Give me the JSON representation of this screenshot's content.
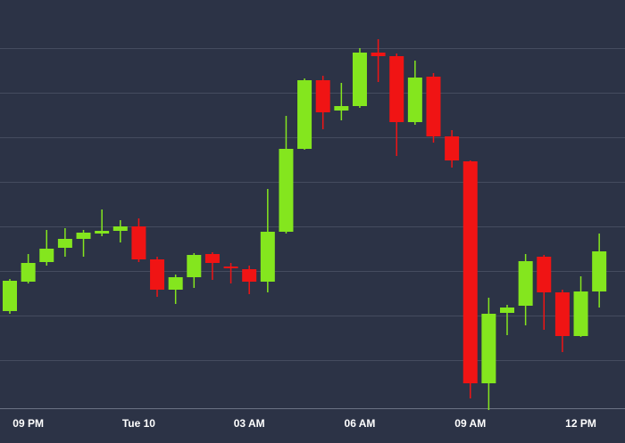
{
  "chart_data": {
    "type": "candlestick",
    "categories": [
      null,
      "09 PM",
      null,
      null,
      null,
      null,
      null,
      "Tue 10",
      null,
      null,
      null,
      null,
      null,
      "03 AM",
      null,
      null,
      null,
      null,
      null,
      "06 AM",
      null,
      null,
      null,
      null,
      null,
      "09 AM",
      null,
      null,
      null,
      null,
      null,
      "12 PM",
      null
    ],
    "open": [
      2.1,
      2.76,
      3.2,
      3.52,
      3.72,
      3.84,
      3.9,
      4.0,
      3.26,
      2.58,
      2.86,
      3.38,
      3.1,
      3.04,
      2.76,
      3.88,
      5.74,
      7.28,
      6.6,
      6.7,
      7.9,
      7.82,
      6.34,
      7.36,
      6.02,
      5.46,
      0.48,
      2.06,
      2.22,
      3.32,
      2.52,
      1.54,
      2.54
    ],
    "high": [
      2.82,
      3.38,
      3.92,
      3.96,
      3.92,
      4.38,
      4.14,
      4.18,
      3.32,
      2.92,
      3.4,
      3.42,
      3.18,
      3.12,
      4.84,
      6.48,
      7.32,
      7.38,
      7.22,
      8.0,
      8.2,
      7.88,
      7.72,
      7.44,
      6.16,
      5.48,
      2.4,
      2.24,
      3.38,
      3.36,
      2.58,
      2.88,
      3.84
    ],
    "low": [
      2.04,
      2.72,
      3.12,
      3.32,
      3.32,
      3.78,
      3.64,
      3.2,
      2.42,
      2.26,
      2.62,
      2.8,
      2.72,
      2.48,
      2.52,
      3.84,
      5.72,
      6.18,
      6.38,
      6.66,
      7.24,
      5.58,
      6.28,
      5.88,
      5.32,
      0.14,
      -0.12,
      1.56,
      1.78,
      1.68,
      1.18,
      1.52,
      2.18
    ],
    "close": [
      2.78,
      3.18,
      3.5,
      3.72,
      3.86,
      3.9,
      4.0,
      3.26,
      2.58,
      2.86,
      3.36,
      3.18,
      3.06,
      2.76,
      3.88,
      5.74,
      7.28,
      6.56,
      6.7,
      7.9,
      7.82,
      6.34,
      7.34,
      6.02,
      5.48,
      0.48,
      2.04,
      2.18,
      3.22,
      2.52,
      1.54,
      2.54,
      3.44
    ],
    "up_color": "#84e61e",
    "down_color": "#f01414",
    "ylim": [
      -0.08,
      9.08
    ],
    "yticks": [
      1,
      2,
      3,
      4,
      5,
      6,
      7,
      8
    ],
    "grid": true
  }
}
